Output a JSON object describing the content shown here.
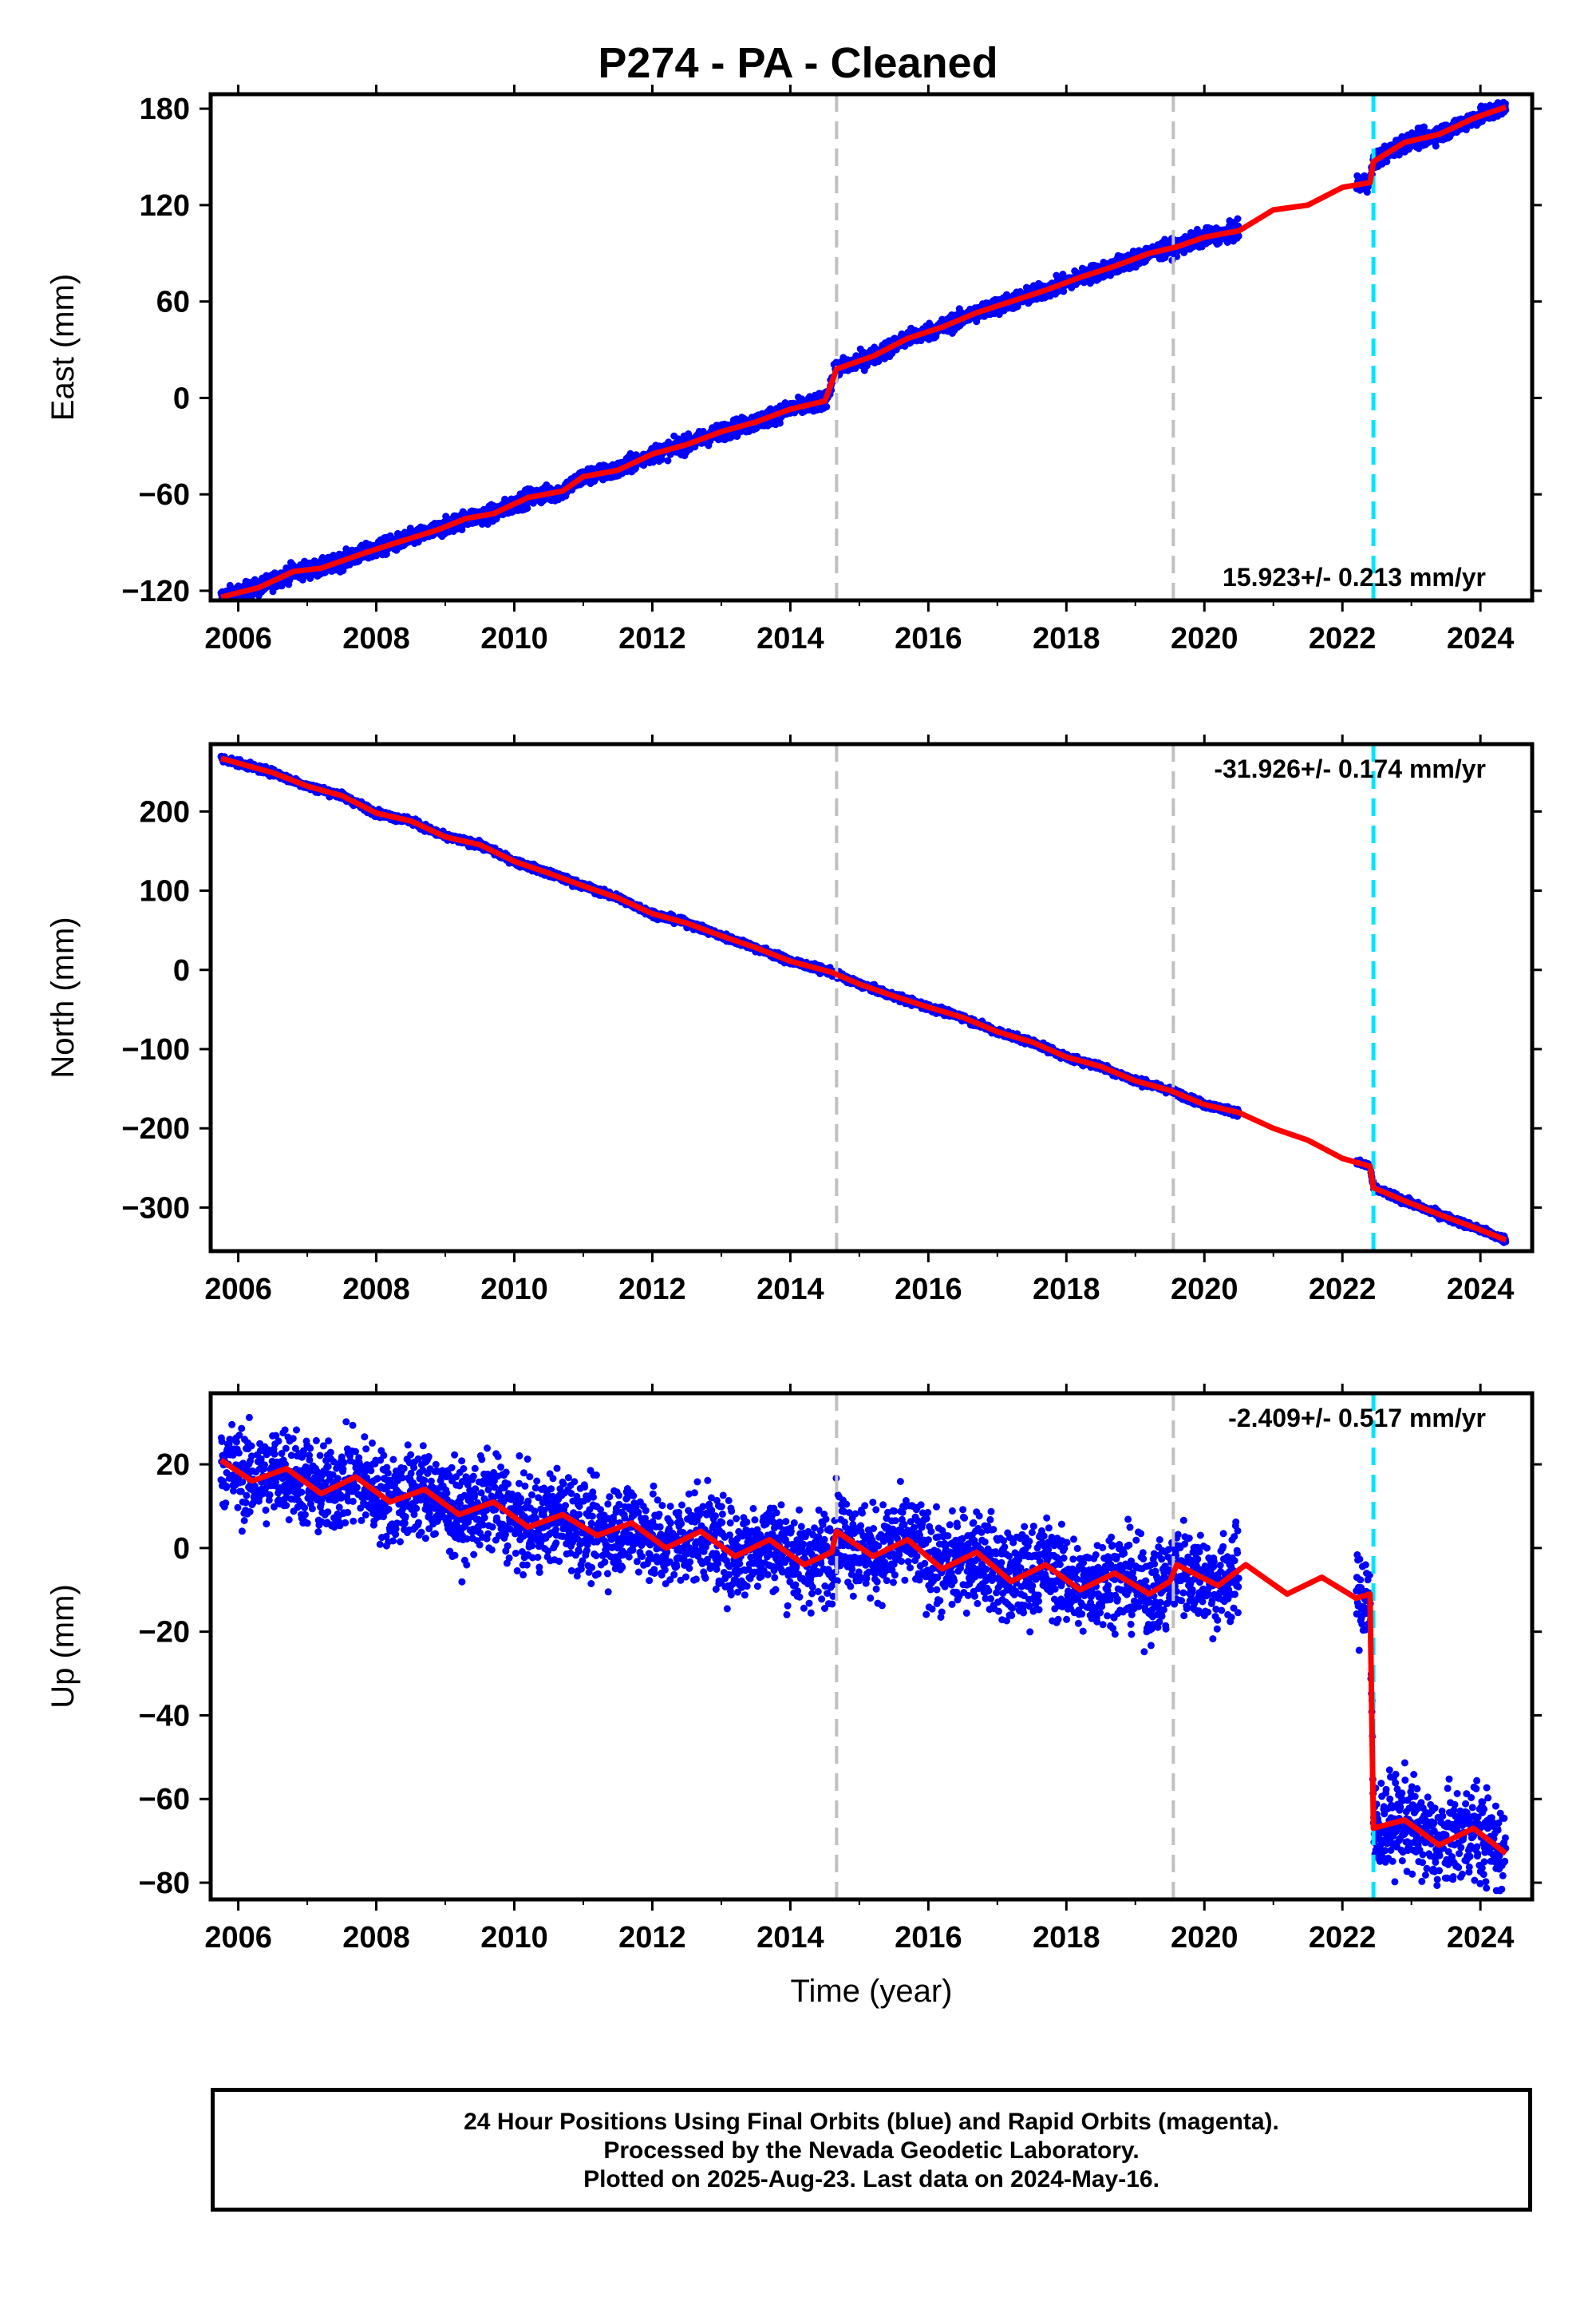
{
  "title": "P274  - PA - Cleaned",
  "footer": {
    "line1": "24 Hour Positions Using Final Orbits (blue) and Rapid Orbits (magenta).",
    "line2": "Processed by the Nevada Geodetic Laboratory.",
    "line3": "Plotted on 2025-Aug-23. Last data on 2024-May-16."
  },
  "colors": {
    "data": "#0000ff",
    "model": "#ff0000",
    "equipment_change": "#c0c0c0",
    "earthquake": "#00e5ff"
  },
  "chart_data": [
    {
      "type": "scatter",
      "ylabel": "East (mm)",
      "rate_label": "15.923+/- 0.213 mm/yr",
      "xlim": [
        2005.6,
        2024.75
      ],
      "ylim": [
        -126,
        189
      ],
      "xticks": [
        2006,
        2008,
        2010,
        2012,
        2014,
        2016,
        2018,
        2020,
        2022,
        2024
      ],
      "yticks": [
        -120,
        -60,
        0,
        60,
        120,
        180
      ],
      "data_range": [
        2005.75,
        2024.37
      ],
      "gap": [
        2020.5,
        2022.2
      ],
      "noise": 2.6,
      "equipment_changes": [
        2014.67,
        2019.55
      ],
      "earthquake": 2022.45,
      "model_line": [
        [
          2005.75,
          -124
        ],
        [
          2006.3,
          -118
        ],
        [
          2006.8,
          -108
        ],
        [
          2007.2,
          -106
        ],
        [
          2007.8,
          -97
        ],
        [
          2008.3,
          -90
        ],
        [
          2008.9,
          -82
        ],
        [
          2009.3,
          -75
        ],
        [
          2009.7,
          -72
        ],
        [
          2010.2,
          -62
        ],
        [
          2010.7,
          -58
        ],
        [
          2011.0,
          -49
        ],
        [
          2011.5,
          -45
        ],
        [
          2012.0,
          -35
        ],
        [
          2012.5,
          -29
        ],
        [
          2013.0,
          -21
        ],
        [
          2013.5,
          -15
        ],
        [
          2014.0,
          -7
        ],
        [
          2014.5,
          -2
        ],
        [
          2014.67,
          18
        ],
        [
          2015.2,
          26
        ],
        [
          2015.7,
          37
        ],
        [
          2016.2,
          44
        ],
        [
          2016.7,
          53
        ],
        [
          2017.2,
          60
        ],
        [
          2017.7,
          67
        ],
        [
          2018.2,
          75
        ],
        [
          2018.7,
          82
        ],
        [
          2019.2,
          90
        ],
        [
          2019.6,
          94
        ],
        [
          2020.0,
          100
        ],
        [
          2020.5,
          104
        ],
        [
          2021.0,
          117
        ],
        [
          2021.5,
          120
        ],
        [
          2022.0,
          131
        ],
        [
          2022.4,
          134
        ],
        [
          2022.45,
          147
        ],
        [
          2022.9,
          159
        ],
        [
          2023.4,
          164
        ],
        [
          2023.9,
          174
        ],
        [
          2024.37,
          181
        ]
      ]
    },
    {
      "type": "scatter",
      "ylabel": "North (mm)",
      "rate_label": "-31.926+/- 0.174 mm/yr",
      "xlim": [
        2005.6,
        2024.75
      ],
      "ylim": [
        -355,
        285
      ],
      "xticks": [
        2006,
        2008,
        2010,
        2012,
        2014,
        2016,
        2018,
        2020,
        2022,
        2024
      ],
      "yticks": [
        -300,
        -200,
        -100,
        0,
        100,
        200
      ],
      "data_range": [
        2005.75,
        2024.37
      ],
      "gap": [
        2020.5,
        2022.2
      ],
      "noise": 2.2,
      "equipment_changes": [
        2014.67,
        2019.55
      ],
      "earthquake": 2022.45,
      "model_line": [
        [
          2005.75,
          267
        ],
        [
          2006.5,
          249
        ],
        [
          2007.0,
          232
        ],
        [
          2007.5,
          220
        ],
        [
          2008.0,
          198
        ],
        [
          2008.5,
          188
        ],
        [
          2009.0,
          168
        ],
        [
          2009.5,
          158
        ],
        [
          2010.0,
          137
        ],
        [
          2010.5,
          122
        ],
        [
          2011.0,
          106
        ],
        [
          2011.5,
          91
        ],
        [
          2012.0,
          71
        ],
        [
          2012.5,
          59
        ],
        [
          2013.0,
          43
        ],
        [
          2013.5,
          28
        ],
        [
          2014.0,
          11
        ],
        [
          2014.6,
          -3
        ],
        [
          2015.0,
          -18
        ],
        [
          2015.5,
          -33
        ],
        [
          2016.0,
          -47
        ],
        [
          2016.5,
          -60
        ],
        [
          2017.0,
          -78
        ],
        [
          2017.5,
          -91
        ],
        [
          2018.0,
          -110
        ],
        [
          2018.5,
          -122
        ],
        [
          2019.0,
          -140
        ],
        [
          2019.5,
          -152
        ],
        [
          2020.0,
          -170
        ],
        [
          2020.5,
          -180
        ],
        [
          2021.0,
          -200
        ],
        [
          2021.5,
          -215
        ],
        [
          2022.0,
          -238
        ],
        [
          2022.4,
          -248
        ],
        [
          2022.45,
          -275
        ],
        [
          2023.0,
          -295
        ],
        [
          2023.5,
          -312
        ],
        [
          2024.0,
          -328
        ],
        [
          2024.37,
          -341
        ]
      ]
    },
    {
      "type": "scatter",
      "ylabel": "Up (mm)",
      "xlabel": "Time (year)",
      "rate_label": "-2.409+/- 0.517 mm/yr",
      "xlim": [
        2005.6,
        2024.75
      ],
      "ylim": [
        -84,
        37
      ],
      "xticks": [
        2006,
        2008,
        2010,
        2012,
        2014,
        2016,
        2018,
        2020,
        2022,
        2024
      ],
      "yticks": [
        -80,
        -60,
        -40,
        -20,
        0,
        20
      ],
      "data_range": [
        2005.75,
        2024.37
      ],
      "gap": [
        2020.5,
        2022.2
      ],
      "noise": 5.5,
      "equipment_changes": [
        2014.67,
        2019.55
      ],
      "earthquake": 2022.45,
      "model_line": [
        [
          2005.75,
          21
        ],
        [
          2006.2,
          16
        ],
        [
          2006.7,
          19
        ],
        [
          2007.2,
          13
        ],
        [
          2007.7,
          17
        ],
        [
          2008.2,
          11
        ],
        [
          2008.7,
          14
        ],
        [
          2009.2,
          8
        ],
        [
          2009.7,
          11
        ],
        [
          2010.2,
          5
        ],
        [
          2010.7,
          8
        ],
        [
          2011.2,
          3
        ],
        [
          2011.7,
          6
        ],
        [
          2012.2,
          0
        ],
        [
          2012.7,
          4
        ],
        [
          2013.2,
          -2
        ],
        [
          2013.7,
          2
        ],
        [
          2014.2,
          -4
        ],
        [
          2014.6,
          -1
        ],
        [
          2014.67,
          4
        ],
        [
          2015.2,
          -2
        ],
        [
          2015.7,
          2
        ],
        [
          2016.2,
          -5
        ],
        [
          2016.7,
          -1
        ],
        [
          2017.2,
          -8
        ],
        [
          2017.7,
          -4
        ],
        [
          2018.2,
          -10
        ],
        [
          2018.7,
          -6
        ],
        [
          2019.2,
          -11
        ],
        [
          2019.5,
          -8
        ],
        [
          2019.6,
          -4
        ],
        [
          2020.2,
          -9
        ],
        [
          2020.6,
          -4
        ],
        [
          2021.2,
          -11
        ],
        [
          2021.7,
          -7
        ],
        [
          2022.2,
          -12
        ],
        [
          2022.4,
          -11
        ],
        [
          2022.45,
          -67
        ],
        [
          2022.9,
          -65
        ],
        [
          2023.4,
          -71
        ],
        [
          2023.9,
          -67
        ],
        [
          2024.37,
          -73
        ]
      ]
    }
  ]
}
